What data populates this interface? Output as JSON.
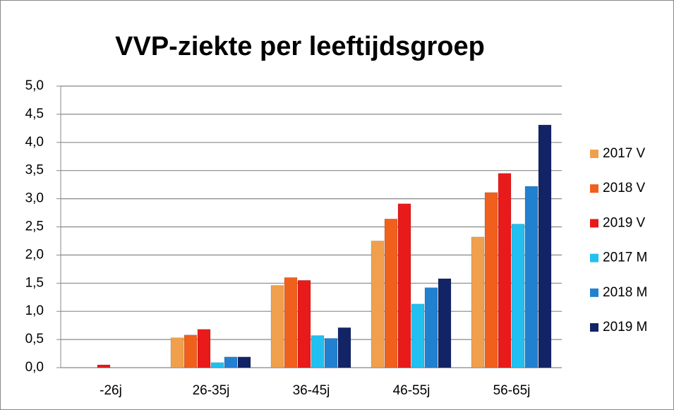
{
  "chart_data": {
    "type": "bar",
    "title": "VVP-ziekte per leeftijdsgroep",
    "categories": [
      "-26j",
      "26-35j",
      "36-45j",
      "46-55j",
      "56-65j"
    ],
    "series": [
      {
        "name": "2017 V",
        "color": "#f0a04c",
        "values": [
          0,
          0.53,
          1.46,
          2.25,
          2.32
        ]
      },
      {
        "name": "2018 V",
        "color": "#f0601c",
        "values": [
          0,
          0.58,
          1.6,
          2.64,
          3.11
        ]
      },
      {
        "name": "2019 V",
        "color": "#e81a1a",
        "values": [
          0.05,
          0.68,
          1.55,
          2.91,
          3.45
        ]
      },
      {
        "name": "2017 M",
        "color": "#22c0f0",
        "values": [
          0,
          0.09,
          0.57,
          1.13,
          2.55
        ]
      },
      {
        "name": "2018 M",
        "color": "#2280d0",
        "values": [
          0,
          0.19,
          0.52,
          1.42,
          3.22
        ]
      },
      {
        "name": "2019 M",
        "color": "#132466",
        "values": [
          0,
          0.19,
          0.71,
          1.58,
          4.31
        ]
      }
    ],
    "ylim": [
      0,
      5
    ],
    "yticks": [
      {
        "value": 0,
        "label": "0,0"
      },
      {
        "value": 0.5,
        "label": "0,5"
      },
      {
        "value": 1,
        "label": "1,0"
      },
      {
        "value": 1.5,
        "label": "1,5"
      },
      {
        "value": 2,
        "label": "2,0"
      },
      {
        "value": 2.5,
        "label": "2,5"
      },
      {
        "value": 3,
        "label": "3,0"
      },
      {
        "value": 3.5,
        "label": "3,5"
      },
      {
        "value": 4,
        "label": "4,0"
      },
      {
        "value": 4.5,
        "label": "4,5"
      },
      {
        "value": 5,
        "label": "5,0"
      }
    ],
    "grid": true,
    "legend": "right"
  }
}
